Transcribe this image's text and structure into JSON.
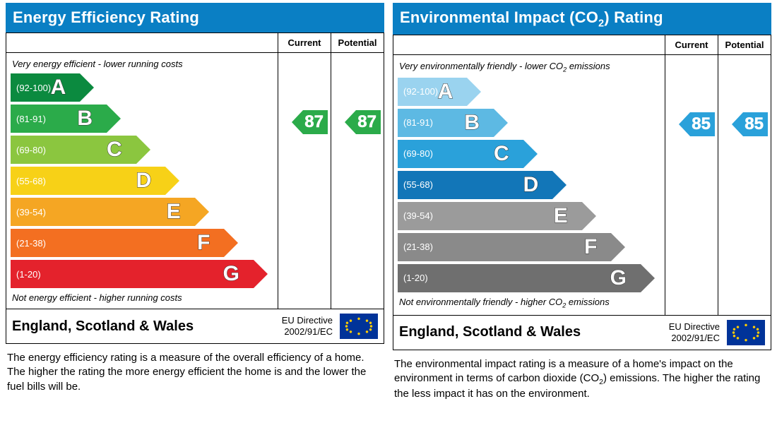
{
  "common": {
    "columns": {
      "current": "Current",
      "potential": "Potential"
    },
    "region": "England, Scotland & Wales",
    "directive_l1": "EU Directive",
    "directive_l2": "2002/91/EC",
    "title_color": "#0a7fc4",
    "bands": [
      {
        "letter": "A",
        "range": "(92-100)",
        "width_pct": 26
      },
      {
        "letter": "B",
        "range": "(81-91)",
        "width_pct": 36
      },
      {
        "letter": "C",
        "range": "(69-80)",
        "width_pct": 47
      },
      {
        "letter": "D",
        "range": "(55-68)",
        "width_pct": 58
      },
      {
        "letter": "E",
        "range": "(39-54)",
        "width_pct": 69
      },
      {
        "letter": "F",
        "range": "(21-38)",
        "width_pct": 80
      },
      {
        "letter": "G",
        "range": "(1-20)",
        "width_pct": 91
      }
    ]
  },
  "left": {
    "title": "Energy Efficiency Rating",
    "top_note": "Very energy efficient - lower running costs",
    "bottom_note": "Not energy efficient - higher running costs",
    "band_colors": [
      "#0b8a3f",
      "#2bab4a",
      "#8bc63f",
      "#f7d117",
      "#f5a623",
      "#f36f21",
      "#e4222c"
    ],
    "current": {
      "value": 87,
      "band_index": 1
    },
    "potential": {
      "value": 87,
      "band_index": 1
    },
    "pointer_color": "#2bab4a",
    "desc": "The energy efficiency rating is a measure of the overall efficiency of a home. The higher the rating the more energy efficient the home is and the lower the fuel bills will be."
  },
  "right": {
    "title_html": "Environmental Impact (CO₂) Rating",
    "top_note_html": "Very environmentally friendly - lower CO₂ emissions",
    "bottom_note_html": "Not environmentally friendly - higher CO₂ emissions",
    "band_colors": [
      "#9ad3ef",
      "#5db9e3",
      "#2aa1da",
      "#1276b8",
      "#9b9b9b",
      "#8a8a8a",
      "#6f6f6f"
    ],
    "current": {
      "value": 85,
      "band_index": 1
    },
    "potential": {
      "value": 85,
      "band_index": 1
    },
    "pointer_color": "#2aa1da",
    "desc_html": "The environmental impact rating is a measure of a home's impact on the environment in terms of carbon dioxide (CO₂) emissions. The higher the rating the less impact it has on the environment."
  }
}
